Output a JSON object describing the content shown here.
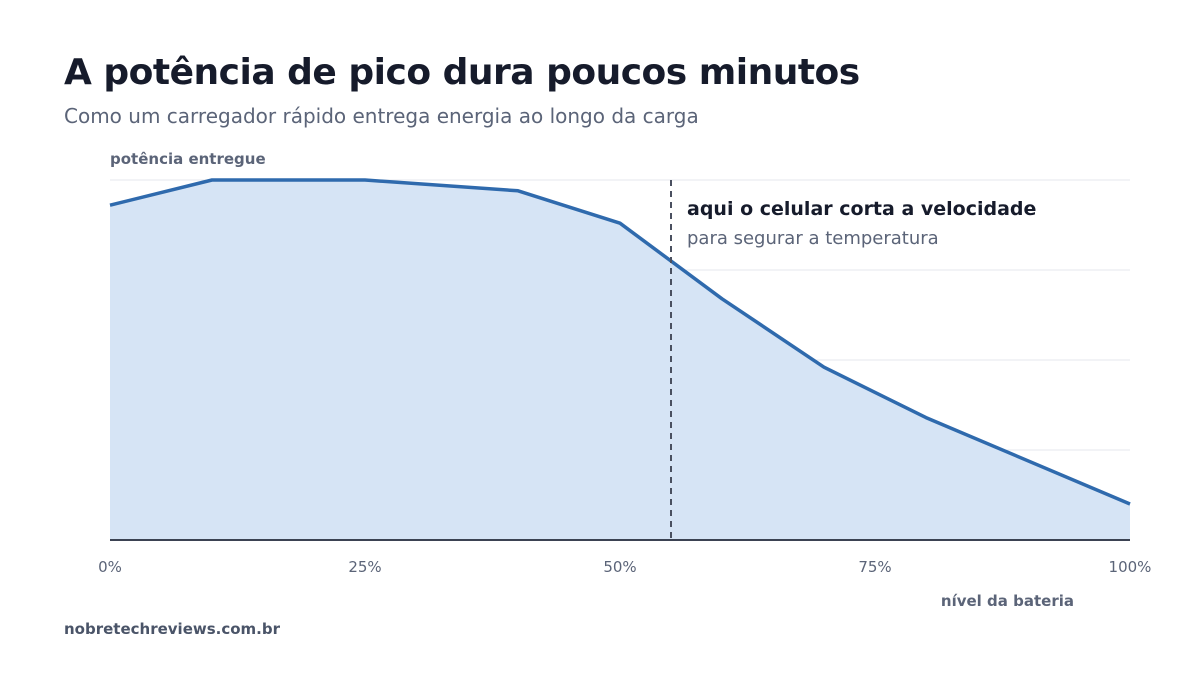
{
  "title": "A potência de pico dura poucos minutos",
  "subtitle": "Como um carregador rápido entrega energia ao longo da carga",
  "footer": "nobretechreviews.com.br",
  "colors": {
    "line": "#2f6aad",
    "area": "#d6e4f5",
    "grid": "#e4e7ec",
    "text_dark": "#161b2b",
    "text_muted": "#5b6478"
  },
  "chart_data": {
    "type": "area",
    "ylabel": "potência entregue",
    "xlabel": "nível da bateria",
    "x_ticks": [
      "0%",
      "25%",
      "50%",
      "75%",
      "100%"
    ],
    "x_tick_values": [
      0,
      25,
      50,
      75,
      100
    ],
    "xlim": [
      0,
      100
    ],
    "ylim": [
      0,
      100
    ],
    "grid": true,
    "series": [
      {
        "x": [
          0,
          10,
          25,
          40,
          50,
          60,
          70,
          80,
          100
        ],
        "y": [
          93,
          100,
          100,
          97,
          88,
          67,
          48,
          34,
          10
        ]
      }
    ],
    "annotation": {
      "x": 55,
      "title": "aqui o celular corta a velocidade",
      "text": "para segurar a temperatura"
    }
  }
}
